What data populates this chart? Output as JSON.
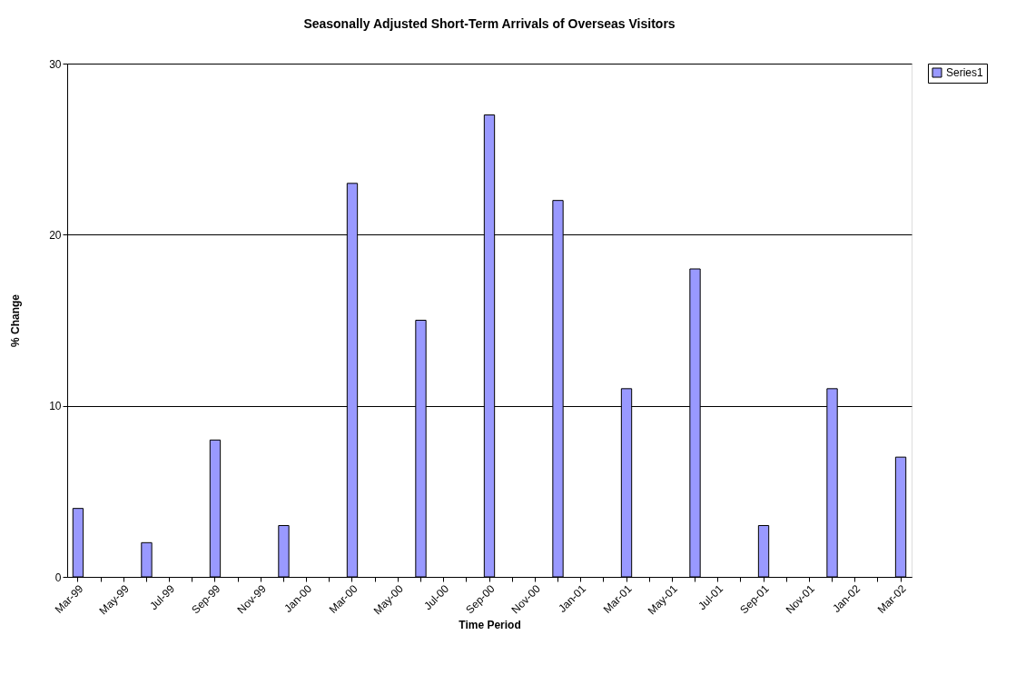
{
  "chart_data": {
    "type": "bar",
    "title": "Seasonally Adjusted Short-Term Arrivals of Overseas Visitors",
    "xlabel": "Time Period",
    "ylabel": "% Change",
    "categories": [
      "Mar-99",
      null,
      "May-99",
      null,
      "Jul-99",
      null,
      "Sep-99",
      null,
      "Nov-99",
      null,
      "Jan-00",
      null,
      "Mar-00",
      null,
      "May-00",
      null,
      "Jul-00",
      null,
      "Sep-00",
      null,
      "Nov-00",
      null,
      "Jan-01",
      null,
      "Mar-01",
      null,
      "May-01",
      null,
      "Jul-01",
      null,
      "Sep-01",
      null,
      "Nov-01",
      null,
      "Jan-02",
      null,
      "Mar-02"
    ],
    "series": [
      {
        "name": "Series1",
        "color": "#9999ff",
        "values": [
          4,
          null,
          null,
          2,
          null,
          null,
          8,
          null,
          null,
          3,
          null,
          null,
          23,
          null,
          null,
          15,
          null,
          null,
          27,
          null,
          null,
          22,
          null,
          null,
          11,
          null,
          null,
          18,
          null,
          null,
          3,
          null,
          null,
          11,
          null,
          null,
          7
        ]
      }
    ],
    "ylim": [
      0,
      30
    ],
    "yticks": [
      0,
      10,
      20,
      30
    ],
    "grid": "y",
    "legend": "right"
  }
}
